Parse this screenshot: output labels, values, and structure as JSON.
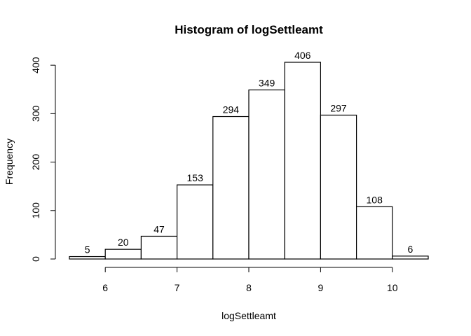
{
  "chart_data": {
    "type": "bar",
    "title": "Histogram of logSettleamt",
    "xlabel": "logSettleamt",
    "ylabel": "Frequency",
    "bins": [
      {
        "from": 5.5,
        "to": 6.0,
        "count": 5
      },
      {
        "from": 6.0,
        "to": 6.5,
        "count": 20
      },
      {
        "from": 6.5,
        "to": 7.0,
        "count": 47
      },
      {
        "from": 7.0,
        "to": 7.5,
        "count": 153
      },
      {
        "from": 7.5,
        "to": 8.0,
        "count": 294
      },
      {
        "from": 8.0,
        "to": 8.5,
        "count": 349
      },
      {
        "from": 8.5,
        "to": 9.0,
        "count": 406
      },
      {
        "from": 9.0,
        "to": 9.5,
        "count": 297
      },
      {
        "from": 9.5,
        "to": 10.0,
        "count": 108
      },
      {
        "from": 10.0,
        "to": 10.5,
        "count": 6
      }
    ],
    "xticks": [
      6,
      7,
      8,
      9,
      10
    ],
    "yticks": [
      0,
      100,
      200,
      300,
      400
    ],
    "xlim": [
      5.5,
      10.5
    ],
    "ylim": [
      0,
      406
    ],
    "grid": false,
    "legend": "none"
  }
}
